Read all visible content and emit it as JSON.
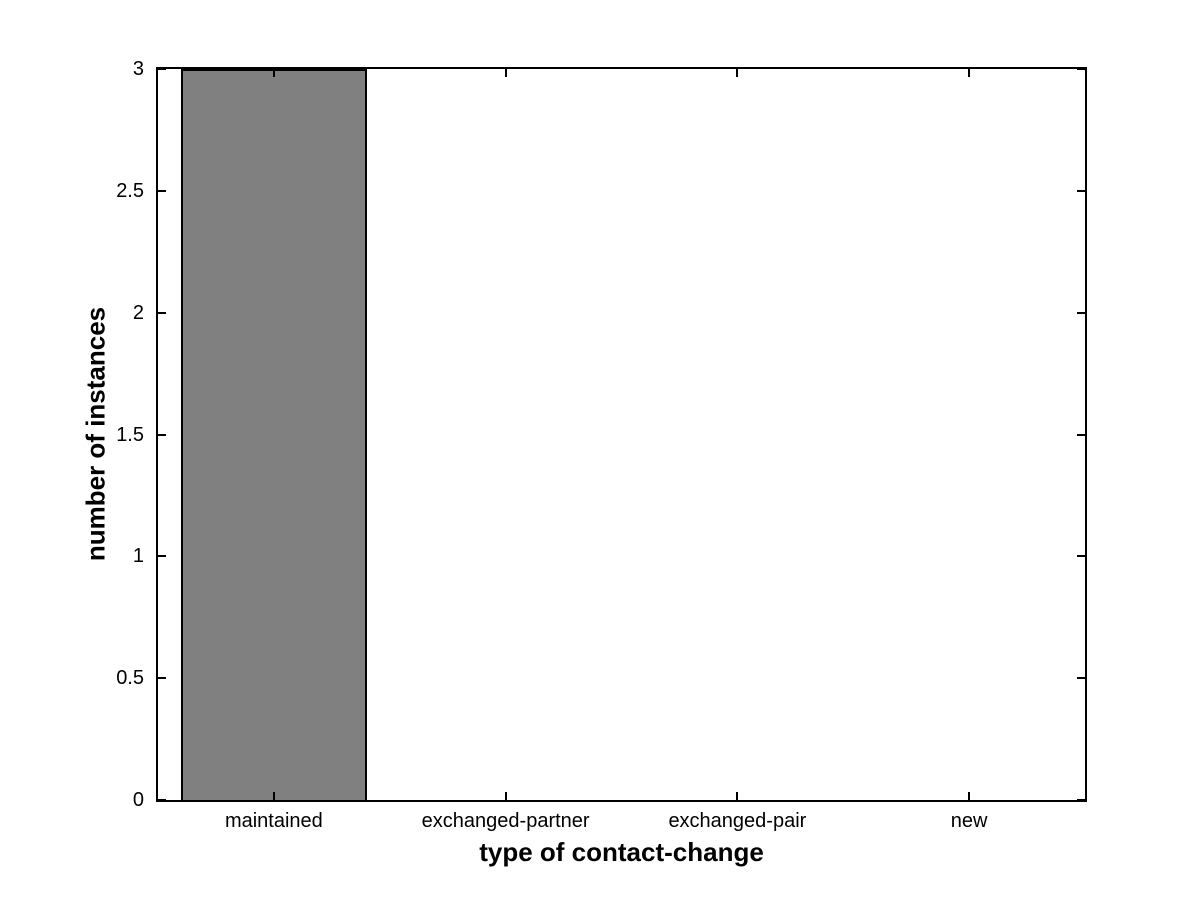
{
  "chart_data": {
    "type": "bar",
    "title": "",
    "categories": [
      "maintained",
      "exchanged-partner",
      "exchanged-pair",
      "new"
    ],
    "values": [
      3,
      0,
      0,
      0
    ],
    "xlabel": "type of contact-change",
    "ylabel": "number of instances",
    "ylim": [
      0,
      3
    ],
    "yticks": [
      0,
      0.5,
      1,
      1.5,
      2,
      2.5,
      3
    ],
    "ytick_labels": [
      "0",
      "0.5",
      "1",
      "1.5",
      "2",
      "2.5",
      "3"
    ],
    "bar_width_fraction": 0.8,
    "grid": false,
    "legend": "none",
    "box": "on",
    "tick_direction": "in",
    "colors": {
      "bar_fill": "#808080",
      "bar_edge": "#000000",
      "axis": "#000000",
      "background": "#ffffff",
      "text": "#000000"
    }
  }
}
